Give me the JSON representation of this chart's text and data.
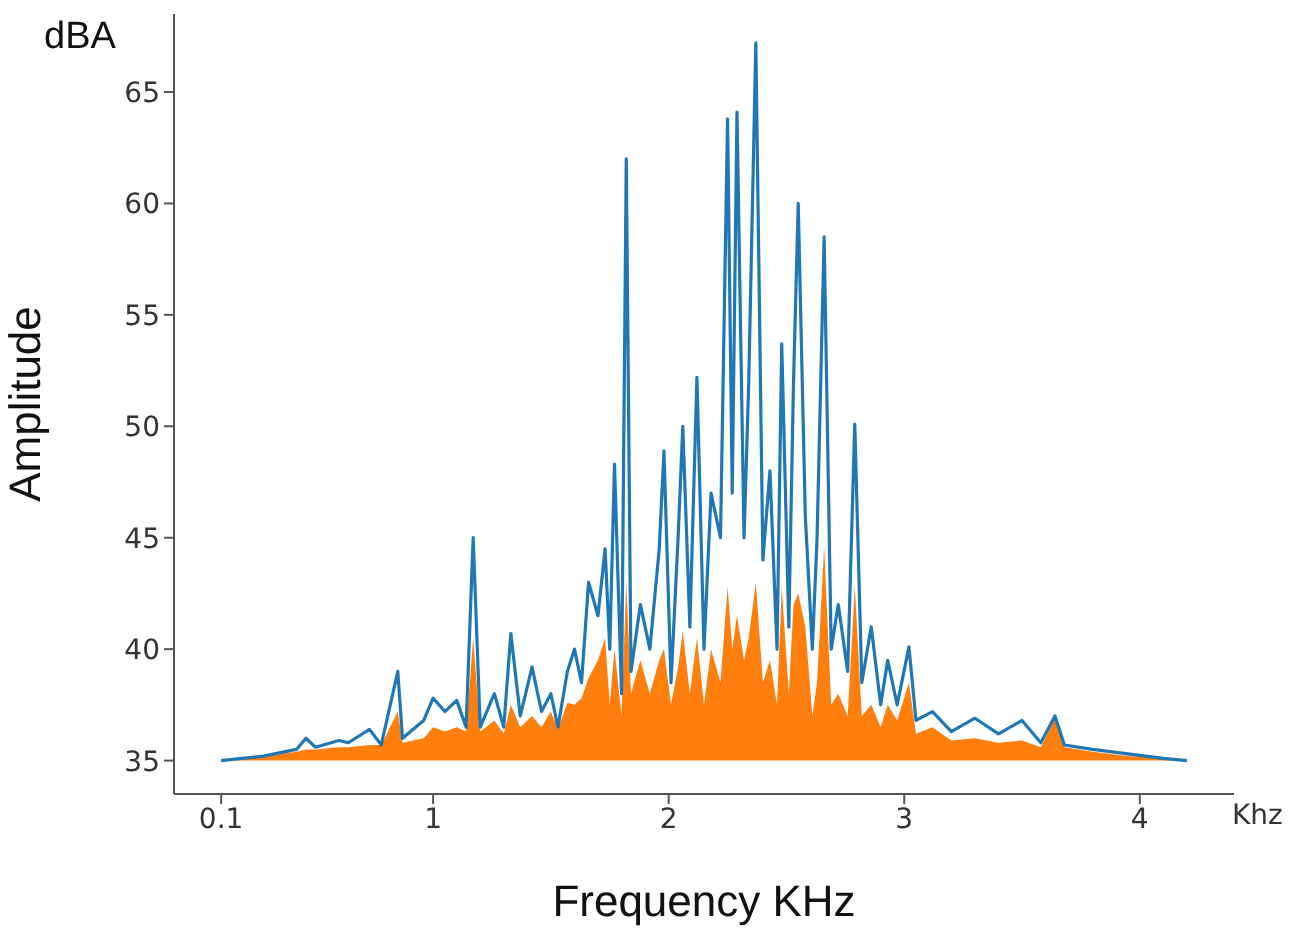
{
  "chart_data": {
    "type": "line",
    "xlabel": "Frequency KHz",
    "ylabel": "Amplitude",
    "annotations": [
      "dBA",
      "Khz"
    ],
    "x": [
      0.1,
      0.28,
      0.42,
      0.46,
      0.5,
      0.6,
      0.64,
      0.73,
      0.78,
      0.85,
      0.87,
      0.96,
      1.0,
      1.05,
      1.1,
      1.14,
      1.17,
      1.2,
      1.26,
      1.3,
      1.33,
      1.37,
      1.42,
      1.46,
      1.5,
      1.53,
      1.57,
      1.6,
      1.63,
      1.66,
      1.7,
      1.73,
      1.75,
      1.77,
      1.8,
      1.82,
      1.84,
      1.88,
      1.92,
      1.96,
      1.98,
      2.01,
      2.04,
      2.06,
      2.09,
      2.12,
      2.15,
      2.18,
      2.22,
      2.25,
      2.27,
      2.29,
      2.32,
      2.34,
      2.37,
      2.4,
      2.43,
      2.46,
      2.48,
      2.51,
      2.53,
      2.55,
      2.58,
      2.61,
      2.63,
      2.66,
      2.69,
      2.72,
      2.76,
      2.79,
      2.82,
      2.86,
      2.9,
      2.93,
      2.97,
      3.02,
      3.05,
      3.12,
      3.2,
      3.3,
      3.4,
      3.5,
      3.58,
      3.64,
      3.68,
      3.8,
      3.95,
      4.1,
      4.2
    ],
    "series": [
      {
        "type": "line",
        "color": "#1f77b4",
        "values": [
          35,
          35.2,
          35.5,
          36,
          35.6,
          35.9,
          35.8,
          36.4,
          35.7,
          39,
          36,
          36.8,
          37.8,
          37.2,
          37.7,
          36.5,
          45,
          36.5,
          38,
          36.5,
          40.7,
          37,
          39.2,
          37.2,
          38,
          36.5,
          39,
          40,
          38.5,
          43,
          41.5,
          44.5,
          40,
          48.3,
          38,
          62,
          39,
          42,
          40,
          44.5,
          48.9,
          38.5,
          45,
          50,
          41,
          52.2,
          40,
          47,
          45,
          63.8,
          47,
          64.1,
          45,
          52,
          67.2,
          44,
          48,
          40,
          53.7,
          41,
          52,
          60,
          46,
          40,
          45,
          58.5,
          40,
          42,
          39,
          50.1,
          38.5,
          41,
          37.5,
          39.5,
          37.5,
          40.1,
          36.8,
          37.2,
          36.3,
          36.9,
          36.2,
          36.8,
          35.8,
          37,
          35.7,
          35.5,
          35.3,
          35.1,
          35
        ]
      },
      {
        "type": "area",
        "color": "#ff7f0e",
        "values": [
          35,
          35.2,
          35.4,
          35.5,
          35.5,
          35.6,
          35.6,
          35.7,
          35.7,
          37.2,
          35.8,
          36,
          36.5,
          36.3,
          36.5,
          36.3,
          40.5,
          36.3,
          36.8,
          36.2,
          37.5,
          36.5,
          37,
          36.5,
          37.2,
          36.4,
          37.6,
          37.5,
          37.8,
          38.7,
          39.5,
          40.5,
          37.5,
          40,
          37,
          43,
          38,
          39.5,
          38,
          39.5,
          40,
          37.5,
          39.2,
          40.8,
          38,
          40.5,
          37.5,
          40,
          38.5,
          42.8,
          40,
          41.5,
          39.5,
          40.5,
          43,
          38.5,
          39.5,
          37.5,
          42.8,
          38,
          42,
          42.5,
          41,
          37,
          38.5,
          44.6,
          37.5,
          38,
          37,
          42.8,
          37,
          37.5,
          36.5,
          37.5,
          36.8,
          38.5,
          36.2,
          36.5,
          35.9,
          36,
          35.8,
          35.9,
          35.6,
          36.9,
          35.6,
          35.4,
          35.2,
          35.1,
          35
        ]
      }
    ],
    "xlim": [
      -0.1,
      4.4
    ],
    "xticks": [
      0.1,
      1,
      2,
      3,
      4
    ],
    "ylim": [
      33.5,
      68.5
    ],
    "yticks": [
      35,
      40,
      45,
      50,
      55,
      60,
      65
    ],
    "grid": false,
    "legend": false
  }
}
